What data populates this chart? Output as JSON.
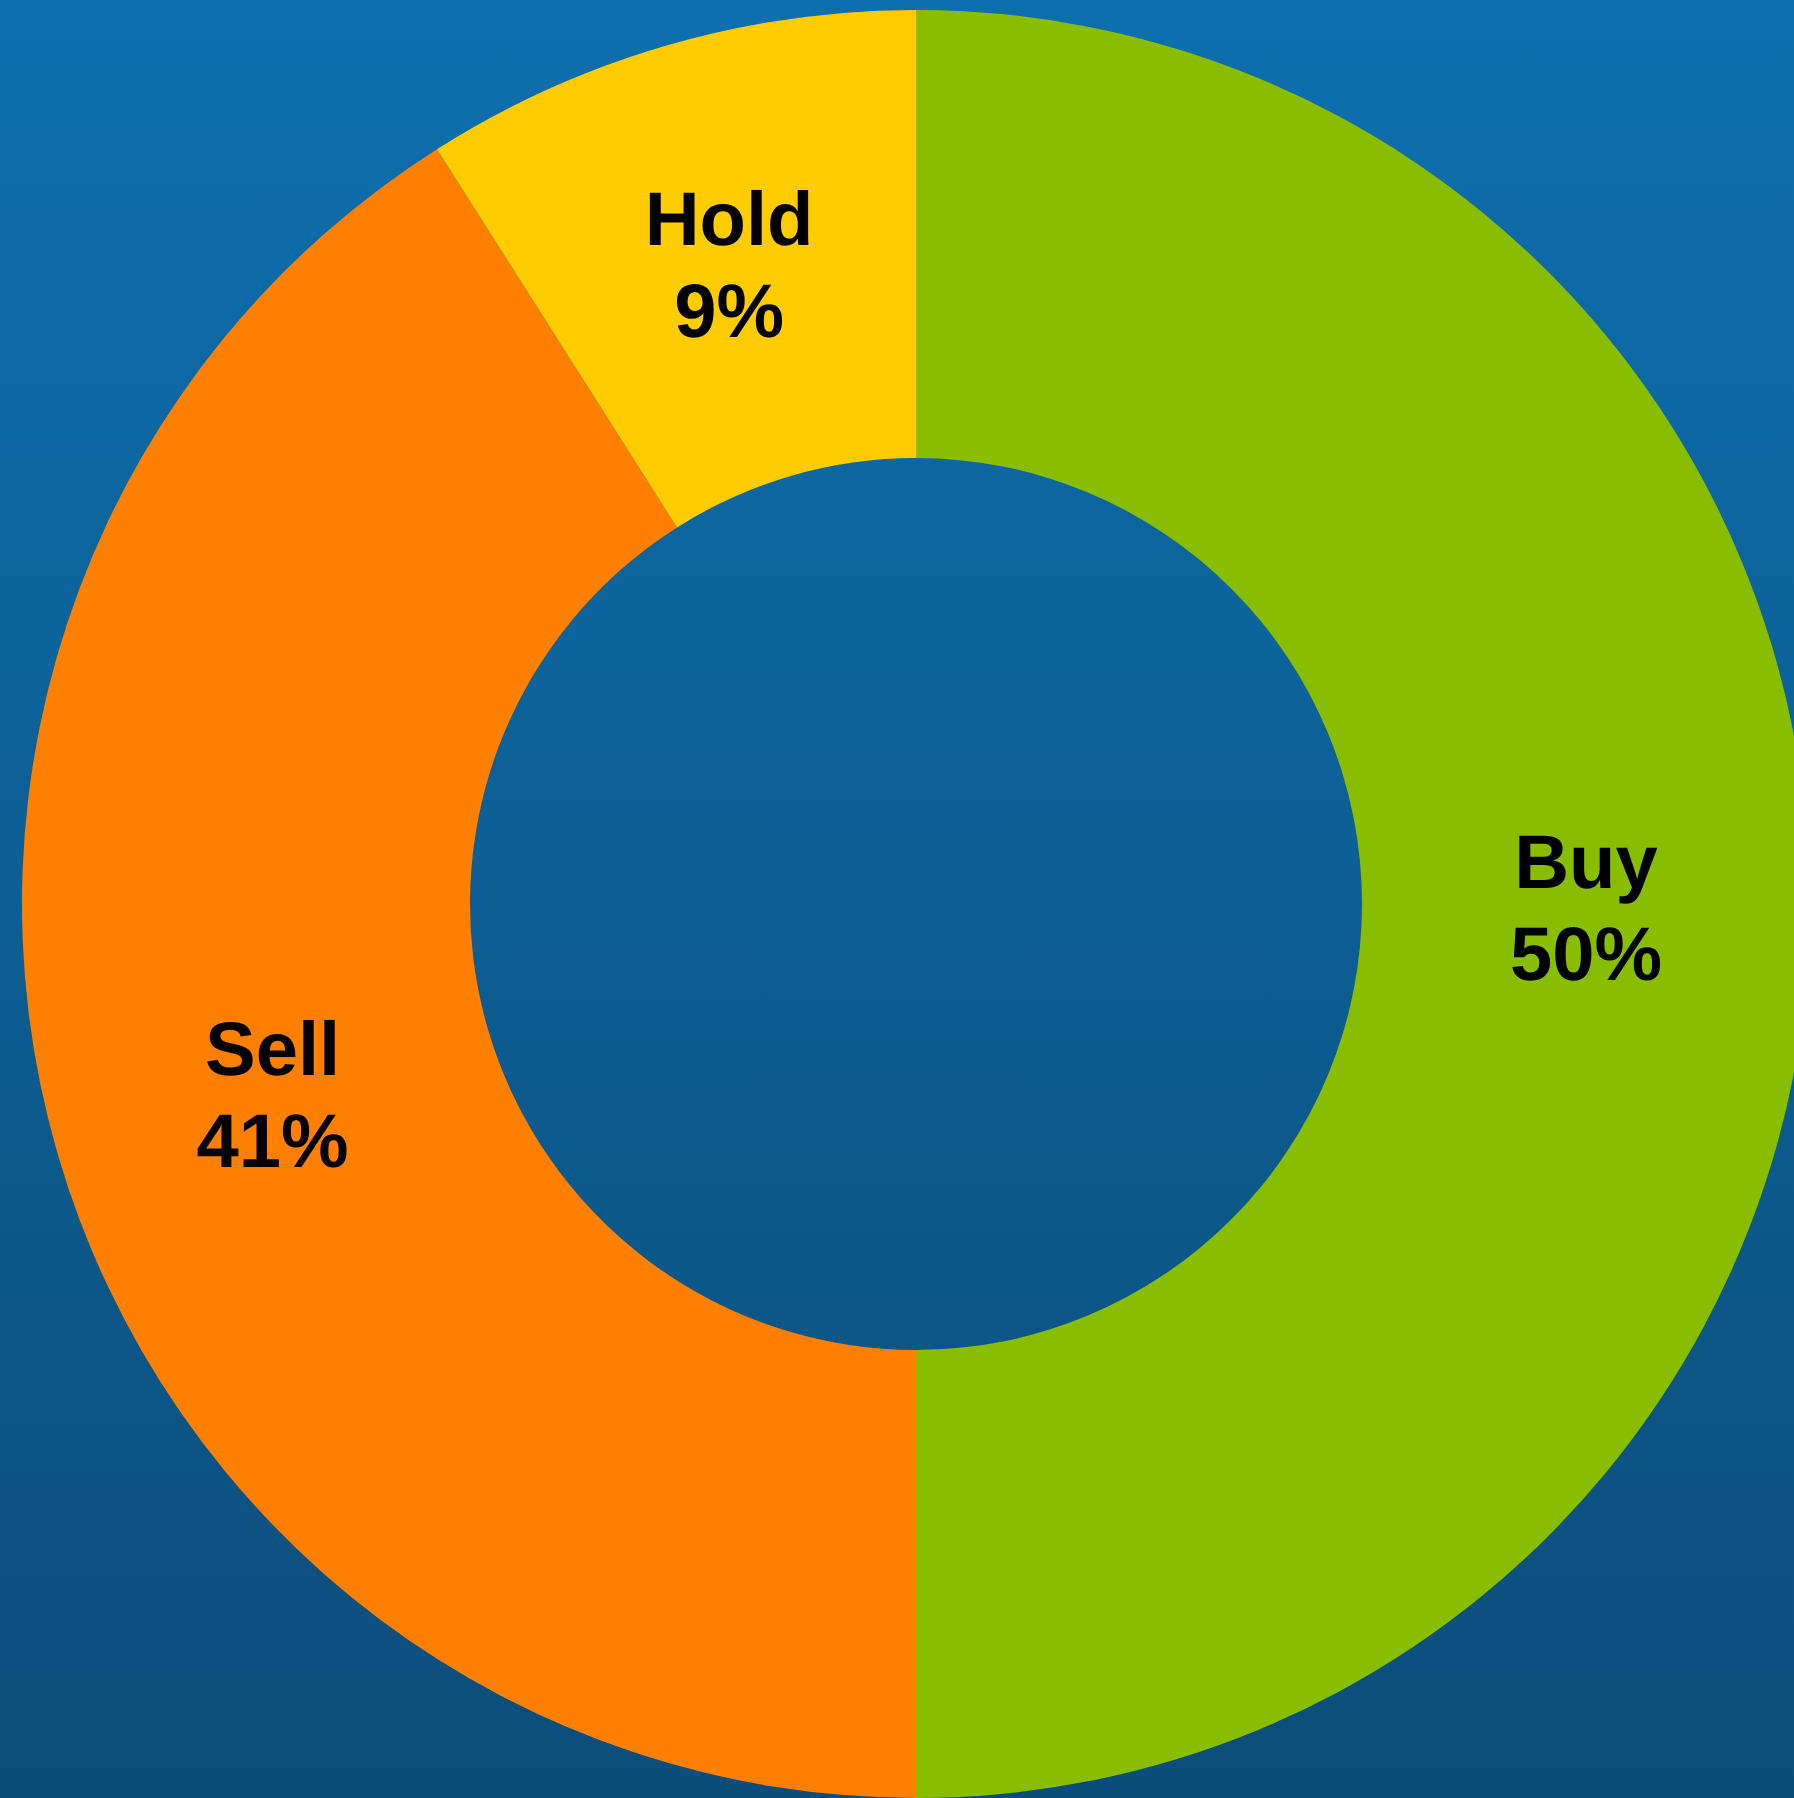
{
  "chart_data": {
    "type": "donut",
    "categories": [
      "Buy",
      "Sell",
      "Hold"
    ],
    "values": [
      50,
      41,
      9
    ],
    "colors": [
      "#88bd00",
      "#ff8000",
      "#ffcc00"
    ],
    "value_labels": [
      "50%",
      "41%",
      "9%"
    ]
  }
}
